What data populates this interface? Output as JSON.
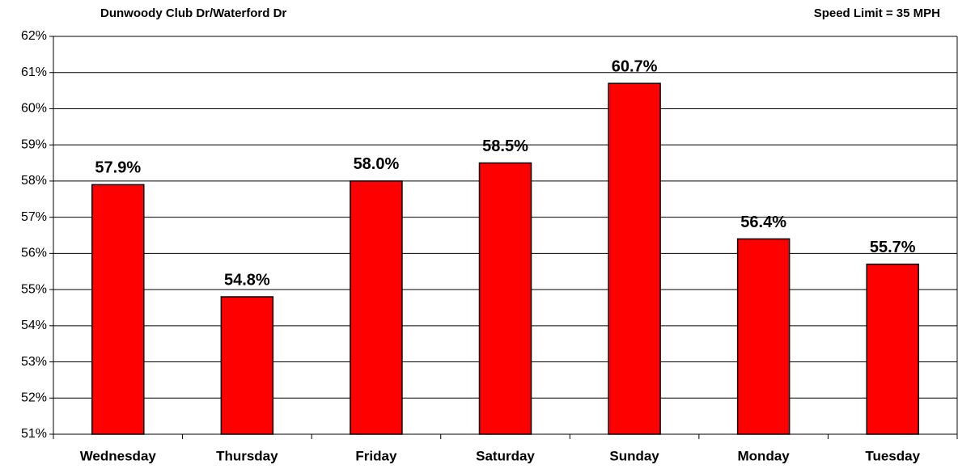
{
  "chart_data": {
    "type": "bar",
    "title": "Dunwoody Club Dr/Waterford Dr",
    "annotation": "Speed Limit = 35 MPH",
    "categories": [
      "Wednesday",
      "Thursday",
      "Friday",
      "Saturday",
      "Sunday",
      "Monday",
      "Tuesday"
    ],
    "values": [
      57.9,
      54.8,
      58.0,
      58.5,
      60.7,
      56.4,
      55.7
    ],
    "value_labels": [
      "57.9%",
      "54.8%",
      "58.0%",
      "58.5%",
      "60.7%",
      "56.4%",
      "55.7%"
    ],
    "color": "#ff0000",
    "ylim": [
      51,
      62
    ],
    "yticks": [
      {
        "value": 51,
        "label": "51%"
      },
      {
        "value": 52,
        "label": "52%"
      },
      {
        "value": 53,
        "label": "53%"
      },
      {
        "value": 54,
        "label": "54%"
      },
      {
        "value": 55,
        "label": "55%"
      },
      {
        "value": 56,
        "label": "56%"
      },
      {
        "value": 57,
        "label": "57%"
      },
      {
        "value": 58,
        "label": "58%"
      },
      {
        "value": 59,
        "label": "59%"
      },
      {
        "value": 60,
        "label": "60%"
      },
      {
        "value": 61,
        "label": "61%"
      },
      {
        "value": 62,
        "label": "62%"
      }
    ],
    "grid": true
  }
}
